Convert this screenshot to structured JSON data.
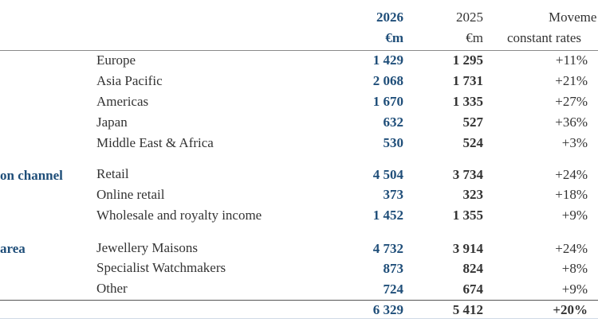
{
  "header": {
    "col2026_year": "2026",
    "col2026_unit": "€m",
    "col2025_year": "2025",
    "col2025_unit": "€m",
    "movement_line1": "Moveme",
    "movement_line2": "constant rates"
  },
  "sections": {
    "channel_label": "on channel",
    "area_label": "area"
  },
  "rows": [
    {
      "label": "Europe",
      "v2026": "1 429",
      "v2025": "1 295",
      "movement": "+11%"
    },
    {
      "label": "Asia Pacific",
      "v2026": "2 068",
      "v2025": "1 731",
      "movement": "+21%"
    },
    {
      "label": "Americas",
      "v2026": "1 670",
      "v2025": "1 335",
      "movement": "+27%"
    },
    {
      "label": "Japan",
      "v2026": "632",
      "v2025": "527",
      "movement": "+36%"
    },
    {
      "label": "Middle East & Africa",
      "v2026": "530",
      "v2025": "524",
      "movement": "+3%"
    },
    {
      "label": "Retail",
      "v2026": "4 504",
      "v2025": "3 734",
      "movement": "+24%"
    },
    {
      "label": "Online retail",
      "v2026": "373",
      "v2025": "323",
      "movement": "+18%"
    },
    {
      "label": "Wholesale and royalty income",
      "v2026": "1 452",
      "v2025": "1 355",
      "movement": "+9%"
    },
    {
      "label": "Jewellery Maisons",
      "v2026": "4 732",
      "v2025": "3 914",
      "movement": "+24%"
    },
    {
      "label": "Specialist Watchmakers",
      "v2026": "873",
      "v2025": "824",
      "movement": "+8%"
    },
    {
      "label": "Other",
      "v2026": "724",
      "v2025": "674",
      "movement": "+9%"
    }
  ],
  "total": {
    "v2026": "6 329",
    "v2025": "5 412",
    "movement": "+20%"
  }
}
